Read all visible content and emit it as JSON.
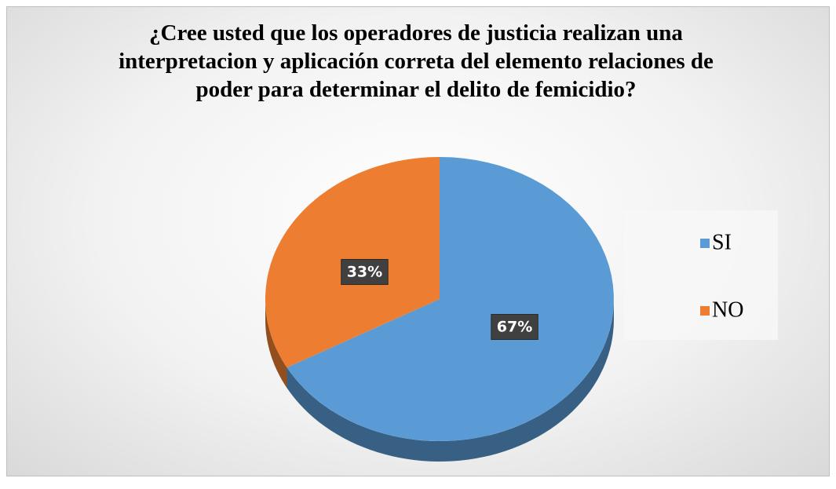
{
  "chart_data": {
    "type": "pie3d",
    "title": "¿Cree usted que los operadores de justicia realizan una interpretacion y aplicación correta del elemento relaciones de poder para determinar el delito de femicidio?",
    "categories": [
      "SI",
      "NO"
    ],
    "values": [
      67,
      33
    ],
    "value_labels": [
      "67%",
      "33%"
    ],
    "colors": [
      "#5b9bd5",
      "#ed7d31"
    ],
    "legend": "right"
  }
}
